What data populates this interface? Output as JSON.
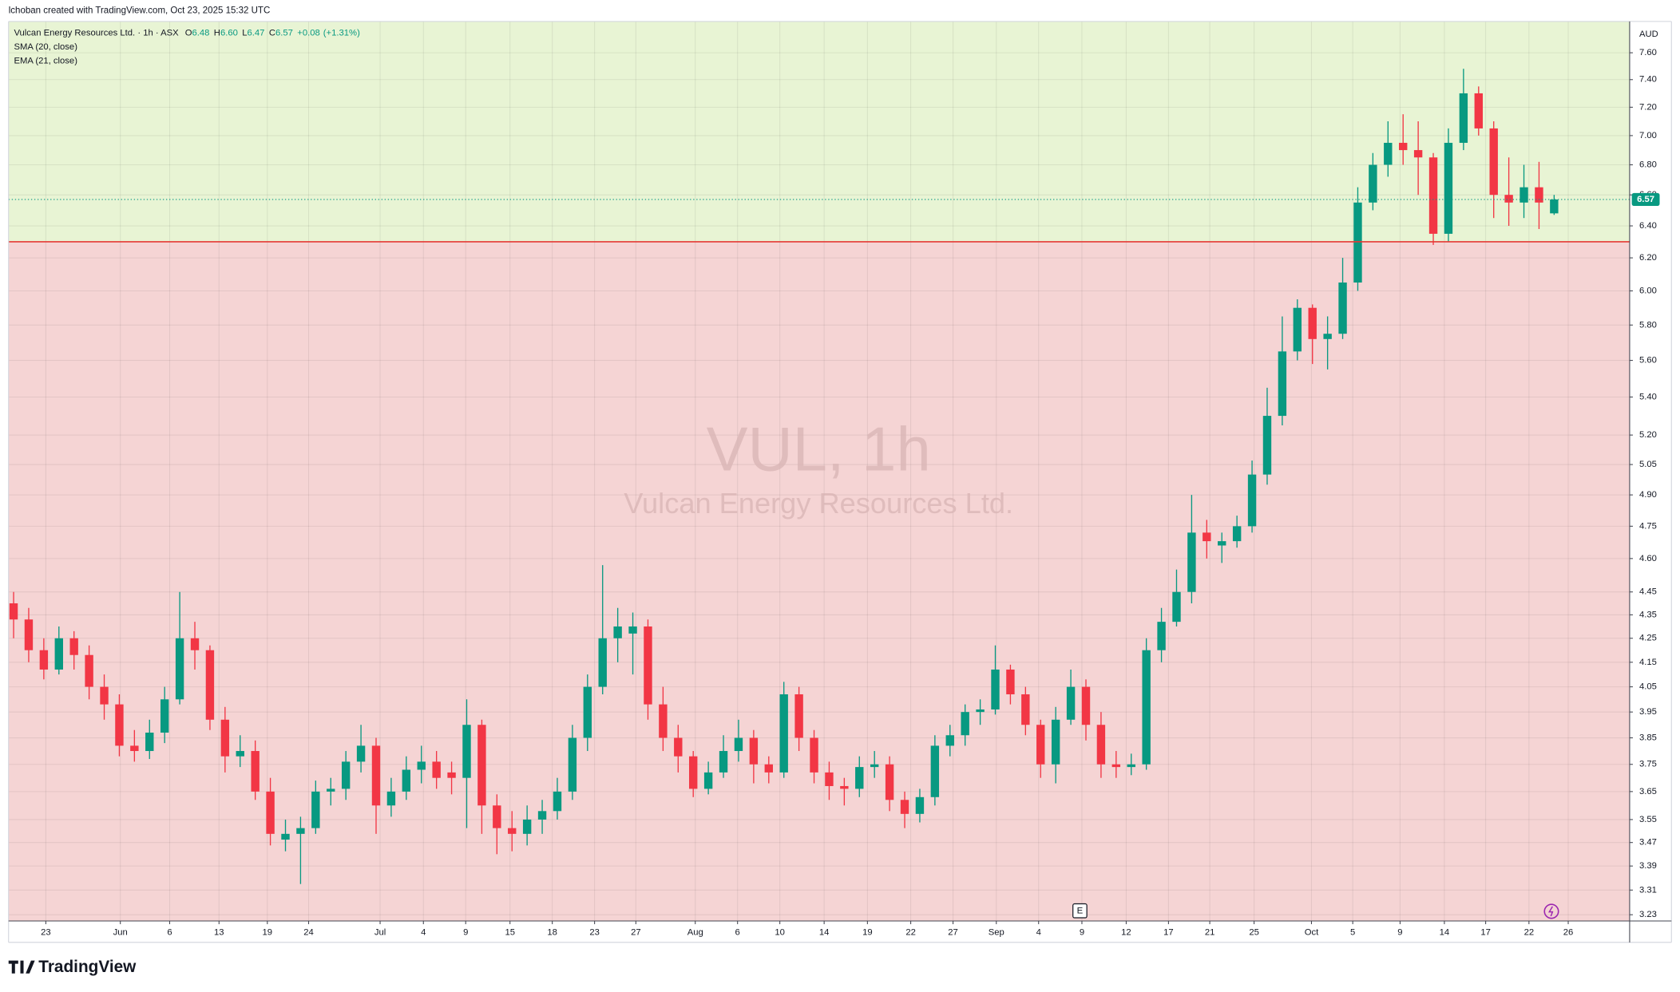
{
  "header": "lchoban created with TradingView.com, Oct 23, 2025 15:32 UTC",
  "footer": {
    "logo": "TradingView"
  },
  "watermark": {
    "symbol": "VUL, 1h",
    "name": "Vulcan Energy Resources Ltd."
  },
  "legend": {
    "title": "Vulcan Energy Resources Ltd. · 1h · ASX",
    "ohlc": [
      {
        "key": "O",
        "text": "6.48"
      },
      {
        "key": "H",
        "text": "6.60"
      },
      {
        "key": "L",
        "text": "6.47"
      },
      {
        "key": "C",
        "text": "6.57"
      }
    ],
    "change": "+0.08",
    "change_pct": "(+1.31%)",
    "indicators": [
      "SMA (20, close)",
      "EMA (21, close)"
    ]
  },
  "chart_data": {
    "type": "candlestick",
    "log_scale": true,
    "grid": true,
    "y_unit": "AUD",
    "up_color": "#089981",
    "down_color": "#f23645",
    "zone_split": 6.3,
    "upper_zone_color": "#e8f4d4",
    "lower_zone_color": "#f5d4d4",
    "zone_line_color": "#e53935",
    "last_price": 6.57,
    "xlim": [
      0,
      161
    ],
    "ylim": [
      3.21,
      7.84
    ],
    "xticks": [
      {
        "value": 3.7,
        "label": "23"
      },
      {
        "value": 11.1,
        "label": "Jun"
      },
      {
        "value": 16.0,
        "label": "6"
      },
      {
        "value": 20.9,
        "label": "13"
      },
      {
        "value": 25.7,
        "label": "19"
      },
      {
        "value": 29.8,
        "label": "24"
      },
      {
        "value": 36.9,
        "label": "Jul"
      },
      {
        "value": 41.2,
        "label": "4"
      },
      {
        "value": 45.4,
        "label": "9"
      },
      {
        "value": 49.8,
        "label": "15"
      },
      {
        "value": 54.0,
        "label": "18"
      },
      {
        "value": 58.2,
        "label": "23"
      },
      {
        "value": 62.3,
        "label": "27"
      },
      {
        "value": 68.2,
        "label": "Aug"
      },
      {
        "value": 72.4,
        "label": "6"
      },
      {
        "value": 76.6,
        "label": "10"
      },
      {
        "value": 81.0,
        "label": "14"
      },
      {
        "value": 85.3,
        "label": "19"
      },
      {
        "value": 89.6,
        "label": "22"
      },
      {
        "value": 93.8,
        "label": "27"
      },
      {
        "value": 98.1,
        "label": "Sep"
      },
      {
        "value": 102.3,
        "label": "4"
      },
      {
        "value": 106.6,
        "label": "9"
      },
      {
        "value": 111.0,
        "label": "12"
      },
      {
        "value": 115.2,
        "label": "17"
      },
      {
        "value": 119.3,
        "label": "21"
      },
      {
        "value": 123.7,
        "label": "25"
      },
      {
        "value": 129.4,
        "label": "Oct"
      },
      {
        "value": 133.5,
        "label": "5"
      },
      {
        "value": 138.2,
        "label": "9"
      },
      {
        "value": 142.6,
        "label": "14"
      },
      {
        "value": 146.7,
        "label": "17"
      },
      {
        "value": 151.0,
        "label": "22"
      },
      {
        "value": 154.9,
        "label": "26"
      }
    ],
    "yticks": [
      {
        "value": 3.23,
        "label": "3.23"
      },
      {
        "value": 3.31,
        "label": "3.31"
      },
      {
        "value": 3.39,
        "label": "3.39"
      },
      {
        "value": 3.47,
        "label": "3.47"
      },
      {
        "value": 3.55,
        "label": "3.55"
      },
      {
        "value": 3.65,
        "label": "3.65"
      },
      {
        "value": 3.75,
        "label": "3.75"
      },
      {
        "value": 3.85,
        "label": "3.85"
      },
      {
        "value": 3.95,
        "label": "3.95"
      },
      {
        "value": 4.05,
        "label": "4.05"
      },
      {
        "value": 4.15,
        "label": "4.15"
      },
      {
        "value": 4.25,
        "label": "4.25"
      },
      {
        "value": 4.35,
        "label": "4.35"
      },
      {
        "value": 4.45,
        "label": "4.45"
      },
      {
        "value": 4.6,
        "label": "4.60"
      },
      {
        "value": 4.75,
        "label": "4.75"
      },
      {
        "value": 4.9,
        "label": "4.90"
      },
      {
        "value": 5.05,
        "label": "5.05"
      },
      {
        "value": 5.2,
        "label": "5.20"
      },
      {
        "value": 5.4,
        "label": "5.40"
      },
      {
        "value": 5.6,
        "label": "5.60"
      },
      {
        "value": 5.8,
        "label": "5.80"
      },
      {
        "value": 6.0,
        "label": "6.00"
      },
      {
        "value": 6.2,
        "label": "6.20"
      },
      {
        "value": 6.4,
        "label": "6.40"
      },
      {
        "value": 6.6,
        "label": "6.60"
      },
      {
        "value": 6.8,
        "label": "6.80"
      },
      {
        "value": 7.0,
        "label": "7.00"
      },
      {
        "value": 7.2,
        "label": "7.20"
      },
      {
        "value": 7.4,
        "label": "7.40"
      },
      {
        "value": 7.6,
        "label": "7.60"
      }
    ],
    "events": [
      {
        "x": 106.4,
        "label": "E"
      }
    ],
    "x": [
      0.5,
      2,
      3.5,
      5,
      6.5,
      8,
      9.5,
      11,
      12.5,
      14,
      15.5,
      17,
      18.5,
      20,
      21.5,
      23,
      24.5,
      26,
      27.5,
      29,
      30.5,
      32,
      33.5,
      35,
      36.5,
      38,
      39.5,
      41,
      42.5,
      44,
      45.5,
      47,
      48.5,
      50,
      51.5,
      53,
      54.5,
      56,
      57.5,
      59,
      60.5,
      62,
      63.5,
      65,
      66.5,
      68,
      69.5,
      71,
      72.5,
      74,
      75.5,
      77,
      78.5,
      80,
      81.5,
      83,
      84.5,
      86,
      87.5,
      89,
      90.5,
      92,
      93.5,
      95,
      96.5,
      98,
      99.5,
      101,
      102.5,
      104,
      105.5,
      107,
      108.5,
      110,
      111.5,
      113,
      114.5,
      116,
      117.5,
      119,
      120.5,
      122,
      123.5,
      125,
      126.5,
      128,
      129.5,
      131,
      132.5,
      134,
      135.5,
      137,
      138.5,
      140,
      141.5,
      143,
      144.5,
      146,
      147.5,
      149,
      150.5,
      152,
      153.5
    ],
    "open": [
      4.4,
      4.33,
      4.2,
      4.12,
      4.25,
      4.18,
      4.05,
      3.98,
      3.82,
      3.8,
      3.87,
      4.0,
      4.25,
      4.2,
      3.92,
      3.78,
      3.8,
      3.65,
      3.48,
      3.5,
      3.52,
      3.65,
      3.66,
      3.76,
      3.82,
      3.6,
      3.65,
      3.73,
      3.76,
      3.72,
      3.7,
      3.9,
      3.6,
      3.52,
      3.5,
      3.55,
      3.58,
      3.65,
      3.85,
      4.05,
      4.25,
      4.27,
      4.3,
      3.98,
      3.85,
      3.78,
      3.66,
      3.72,
      3.8,
      3.85,
      3.75,
      3.72,
      4.02,
      3.85,
      3.72,
      3.67,
      3.66,
      3.74,
      3.75,
      3.62,
      3.57,
      3.63,
      3.82,
      3.86,
      3.95,
      3.96,
      4.12,
      4.02,
      3.9,
      3.75,
      3.92,
      4.05,
      3.9,
      3.75,
      3.74,
      3.75,
      4.2,
      4.32,
      4.45,
      4.72,
      4.66,
      4.68,
      4.75,
      5.0,
      5.3,
      5.65,
      5.9,
      5.72,
      5.75,
      6.05,
      6.55,
      6.8,
      6.95,
      6.9,
      6.85,
      6.35,
      6.95,
      7.3,
      7.05,
      6.6,
      6.55,
      6.65,
      6.48
    ],
    "high": [
      4.45,
      4.38,
      4.25,
      4.3,
      4.28,
      4.22,
      4.1,
      4.02,
      3.88,
      3.92,
      4.05,
      4.45,
      4.32,
      4.22,
      3.97,
      3.86,
      3.84,
      3.7,
      3.55,
      3.56,
      3.69,
      3.7,
      3.8,
      3.9,
      3.85,
      3.7,
      3.78,
      3.82,
      3.8,
      3.76,
      4.0,
      3.92,
      3.64,
      3.58,
      3.6,
      3.62,
      3.7,
      3.9,
      4.1,
      4.57,
      4.38,
      4.36,
      4.33,
      4.05,
      3.9,
      3.8,
      3.76,
      3.86,
      3.92,
      3.88,
      3.78,
      4.07,
      4.05,
      3.88,
      3.76,
      3.7,
      3.78,
      3.8,
      3.78,
      3.65,
      3.66,
      3.86,
      3.9,
      3.98,
      4.0,
      4.22,
      4.14,
      4.05,
      3.92,
      3.97,
      4.12,
      4.08,
      3.95,
      3.8,
      3.79,
      4.25,
      4.38,
      4.55,
      4.9,
      4.78,
      4.72,
      4.8,
      5.07,
      5.45,
      5.85,
      5.95,
      5.92,
      5.85,
      6.2,
      6.65,
      6.88,
      7.1,
      7.15,
      7.1,
      6.88,
      7.05,
      7.48,
      7.35,
      7.1,
      6.85,
      6.8,
      6.82,
      6.6
    ],
    "low": [
      4.25,
      4.15,
      4.08,
      4.1,
      4.12,
      4.0,
      3.92,
      3.78,
      3.76,
      3.77,
      3.83,
      3.98,
      4.12,
      3.88,
      3.72,
      3.74,
      3.62,
      3.46,
      3.44,
      3.33,
      3.5,
      3.6,
      3.62,
      3.72,
      3.5,
      3.56,
      3.62,
      3.68,
      3.66,
      3.64,
      3.52,
      3.5,
      3.43,
      3.44,
      3.46,
      3.5,
      3.55,
      3.62,
      3.8,
      4.02,
      4.15,
      4.1,
      3.92,
      3.8,
      3.72,
      3.63,
      3.64,
      3.7,
      3.76,
      3.68,
      3.68,
      3.7,
      3.8,
      3.68,
      3.62,
      3.6,
      3.63,
      3.7,
      3.58,
      3.52,
      3.54,
      3.6,
      3.78,
      3.82,
      3.9,
      3.94,
      3.98,
      3.86,
      3.7,
      3.68,
      3.9,
      3.84,
      3.7,
      3.7,
      3.71,
      3.73,
      4.15,
      4.3,
      4.4,
      4.6,
      4.58,
      4.65,
      4.72,
      4.95,
      5.25,
      5.6,
      5.58,
      5.55,
      5.72,
      6.0,
      6.5,
      6.72,
      6.8,
      6.6,
      6.28,
      6.3,
      6.9,
      7.0,
      6.45,
      6.4,
      6.45,
      6.38,
      6.47
    ],
    "close": [
      4.33,
      4.2,
      4.12,
      4.25,
      4.18,
      4.05,
      3.98,
      3.82,
      3.8,
      3.87,
      4.0,
      4.25,
      4.2,
      3.92,
      3.78,
      3.8,
      3.65,
      3.5,
      3.5,
      3.52,
      3.65,
      3.66,
      3.76,
      3.82,
      3.6,
      3.65,
      3.73,
      3.76,
      3.7,
      3.7,
      3.9,
      3.6,
      3.52,
      3.5,
      3.55,
      3.58,
      3.65,
      3.85,
      4.05,
      4.25,
      4.3,
      4.3,
      3.98,
      3.85,
      3.78,
      3.66,
      3.72,
      3.8,
      3.85,
      3.75,
      3.72,
      4.02,
      3.85,
      3.72,
      3.67,
      3.66,
      3.74,
      3.75,
      3.62,
      3.57,
      3.63,
      3.82,
      3.86,
      3.95,
      3.96,
      4.12,
      4.02,
      3.9,
      3.75,
      3.92,
      4.05,
      3.9,
      3.75,
      3.74,
      3.75,
      4.2,
      4.32,
      4.45,
      4.72,
      4.68,
      4.68,
      4.75,
      5.0,
      5.3,
      5.65,
      5.9,
      5.72,
      5.75,
      6.05,
      6.55,
      6.8,
      6.95,
      6.9,
      6.85,
      6.35,
      6.95,
      7.3,
      7.05,
      6.6,
      6.55,
      6.65,
      6.55,
      6.57
    ]
  }
}
